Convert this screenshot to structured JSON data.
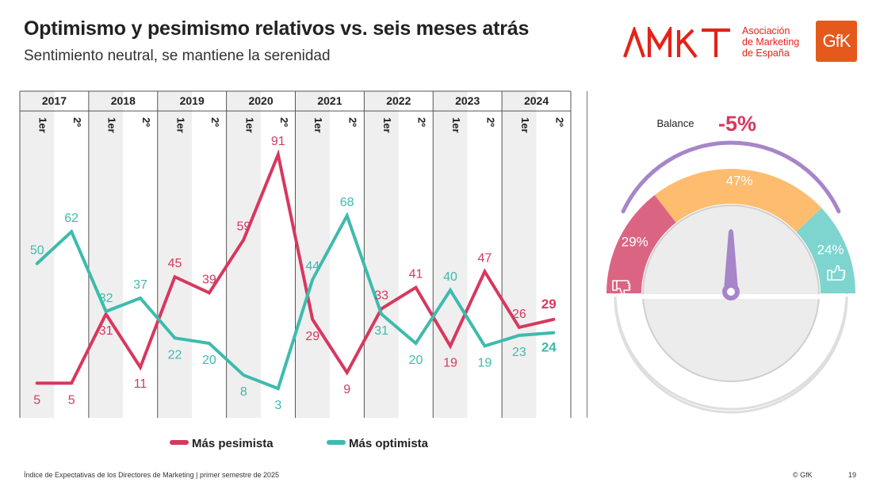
{
  "header": {
    "title": "Optimismo y pesimismo relativos vs. seis meses atrás",
    "subtitle": "Sentimiento neutral, se mantiene la serenidad"
  },
  "logos": {
    "amkt_line1": "Asociación",
    "amkt_line2": "de Marketing",
    "amkt_line3": "de España",
    "gfk": "GfK"
  },
  "colors": {
    "pesimista": "#d7385e",
    "optimista": "#3dbbad",
    "balance_arc": "#a685c9",
    "gauge_neg": "#dc6483",
    "gauge_neutral": "#fdbc6e",
    "gauge_pos": "#7ed4cf",
    "needle": "#a685c9"
  },
  "chart_data": {
    "type": "line",
    "years": [
      "2017",
      "2018",
      "2019",
      "2020",
      "2021",
      "2022",
      "2023",
      "2024"
    ],
    "categories": [
      "1er",
      "2º",
      "1er",
      "2º",
      "1er",
      "2º",
      "1er",
      "2º",
      "1er",
      "2º",
      "1er",
      "2º",
      "1er",
      "2º",
      "1er",
      "2º"
    ],
    "series": [
      {
        "name": "Más pesimista",
        "values": [
          5,
          5,
          31,
          11,
          45,
          39,
          59,
          91,
          29,
          9,
          33,
          41,
          19,
          47,
          26,
          29
        ]
      },
      {
        "name": "Más optimista",
        "values": [
          50,
          62,
          32,
          37,
          22,
          20,
          8,
          3,
          44,
          68,
          31,
          20,
          40,
          19,
          23,
          24
        ]
      }
    ],
    "gauge": {
      "balance_label": "Balance",
      "balance_value": "-5%",
      "segments": [
        {
          "value": 29,
          "label": "29%"
        },
        {
          "value": 47,
          "label": "47%"
        },
        {
          "value": 24,
          "label": "24%"
        }
      ]
    }
  },
  "legend": {
    "pesimista": "Más pesimista",
    "optimista": "Más optimista"
  },
  "footer": {
    "source": "Índice de Expectativas de los Directores de Marketing |  primer semestre de 2025",
    "copyright": "© GfK",
    "page": "19"
  }
}
